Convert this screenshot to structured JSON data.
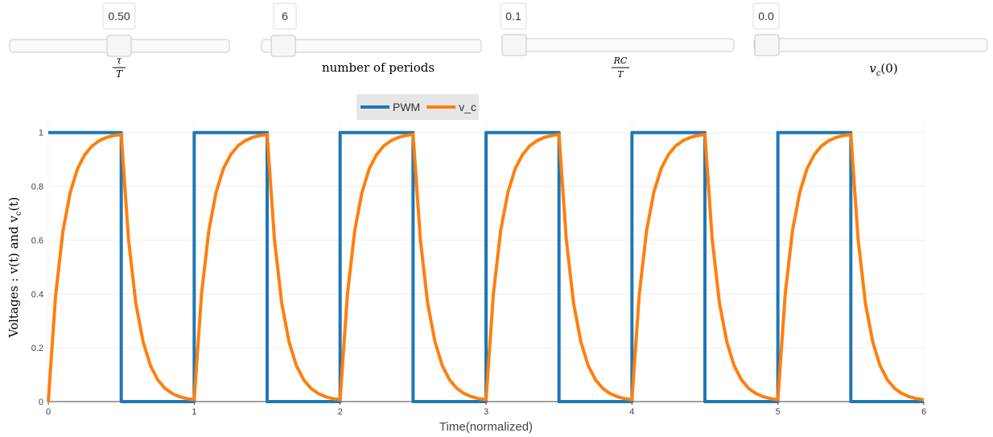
{
  "sliders": [
    {
      "value": "0.50",
      "label": {
        "numerator": "τ",
        "denominator": "T"
      }
    },
    {
      "value": "6",
      "label": {
        "text": "number of periods"
      }
    },
    {
      "value": "0.1",
      "label": {
        "numerator": "RC",
        "denominator": "T"
      }
    },
    {
      "value": "0.0",
      "label": {
        "base": "v",
        "sub": "c",
        "rest": "(0)"
      }
    }
  ],
  "chart_data": {
    "type": "line",
    "xlabel": "Time(normalized)",
    "ylabel": {
      "text": "Voltages : v(t) and v",
      "sub": "c",
      "rest": "(t)"
    },
    "xlim": [
      0,
      6
    ],
    "xticks": [
      0,
      1,
      2,
      3,
      4,
      5,
      6
    ],
    "ylim": [
      0,
      1.05
    ],
    "yticks": [
      0,
      0.2,
      0.4,
      0.6,
      0.8,
      1
    ],
    "grid": true,
    "legend": "top",
    "series": [
      {
        "name": "PWM",
        "color": "#1f77b4",
        "x": [
          0,
          0.5,
          0.5,
          1,
          1,
          1.5,
          1.5,
          2,
          2,
          2.5,
          2.5,
          3,
          3,
          3.5,
          3.5,
          4,
          4,
          4.5,
          4.5,
          5,
          5,
          5.5,
          5.5,
          6
        ],
        "values": [
          1,
          1,
          0,
          0,
          1,
          1,
          0,
          0,
          1,
          1,
          0,
          0,
          1,
          1,
          0,
          0,
          1,
          1,
          0,
          0,
          1,
          1,
          0,
          0
        ]
      },
      {
        "name": "v_c",
        "color": "#ff7f0e",
        "x": [
          0,
          0.05,
          0.1,
          0.15,
          0.2,
          0.25,
          0.3,
          0.35,
          0.4,
          0.45,
          0.5,
          0.55,
          0.6,
          0.65,
          0.7,
          0.75,
          0.8,
          0.85,
          0.9,
          0.95,
          1,
          1.05,
          1.1,
          1.15,
          1.2,
          1.25,
          1.3,
          1.35,
          1.4,
          1.45,
          1.5,
          1.55,
          1.6,
          1.65,
          1.7,
          1.75,
          1.8,
          1.85,
          1.9,
          1.95,
          2,
          2.05,
          2.1,
          2.15,
          2.2,
          2.25,
          2.3,
          2.35,
          2.4,
          2.45,
          2.5,
          2.55,
          2.6,
          2.65,
          2.7,
          2.75,
          2.8,
          2.85,
          2.9,
          2.95,
          3,
          3.05,
          3.1,
          3.15,
          3.2,
          3.25,
          3.3,
          3.35,
          3.4,
          3.45,
          3.5,
          3.55,
          3.6,
          3.65,
          3.7,
          3.75,
          3.8,
          3.85,
          3.9,
          3.95,
          4,
          4.05,
          4.1,
          4.15,
          4.2,
          4.25,
          4.3,
          4.35,
          4.4,
          4.45,
          4.5,
          4.55,
          4.6,
          4.65,
          4.7,
          4.75,
          4.8,
          4.85,
          4.9,
          4.95,
          5,
          5.05,
          5.1,
          5.15,
          5.2,
          5.25,
          5.3,
          5.35,
          5.4,
          5.45,
          5.5,
          5.55,
          5.6,
          5.65,
          5.7,
          5.75,
          5.8,
          5.85,
          5.9,
          5.95,
          6
        ],
        "values": [
          0,
          0.393,
          0.632,
          0.777,
          0.865,
          0.918,
          0.95,
          0.97,
          0.982,
          0.989,
          0.993,
          0.602,
          0.365,
          0.222,
          0.134,
          0.081,
          0.049,
          0.03,
          0.018,
          0.011,
          0.007,
          0.398,
          0.635,
          0.778,
          0.866,
          0.918,
          0.951,
          0.97,
          0.982,
          0.989,
          0.993,
          0.602,
          0.365,
          0.222,
          0.134,
          0.081,
          0.049,
          0.03,
          0.018,
          0.011,
          0.007,
          0.398,
          0.635,
          0.778,
          0.866,
          0.918,
          0.951,
          0.97,
          0.982,
          0.989,
          0.993,
          0.602,
          0.365,
          0.222,
          0.134,
          0.081,
          0.049,
          0.03,
          0.018,
          0.011,
          0.007,
          0.398,
          0.635,
          0.778,
          0.866,
          0.918,
          0.951,
          0.97,
          0.982,
          0.989,
          0.993,
          0.602,
          0.365,
          0.222,
          0.134,
          0.081,
          0.049,
          0.03,
          0.018,
          0.011,
          0.007,
          0.398,
          0.635,
          0.778,
          0.866,
          0.918,
          0.951,
          0.97,
          0.982,
          0.989,
          0.993,
          0.602,
          0.365,
          0.222,
          0.134,
          0.081,
          0.049,
          0.03,
          0.018,
          0.011,
          0.007,
          0.398,
          0.635,
          0.778,
          0.866,
          0.918,
          0.951,
          0.97,
          0.982,
          0.989,
          0.993,
          0.602,
          0.365,
          0.222,
          0.134,
          0.081,
          0.049,
          0.03,
          0.018,
          0.011,
          0.007
        ]
      }
    ]
  }
}
